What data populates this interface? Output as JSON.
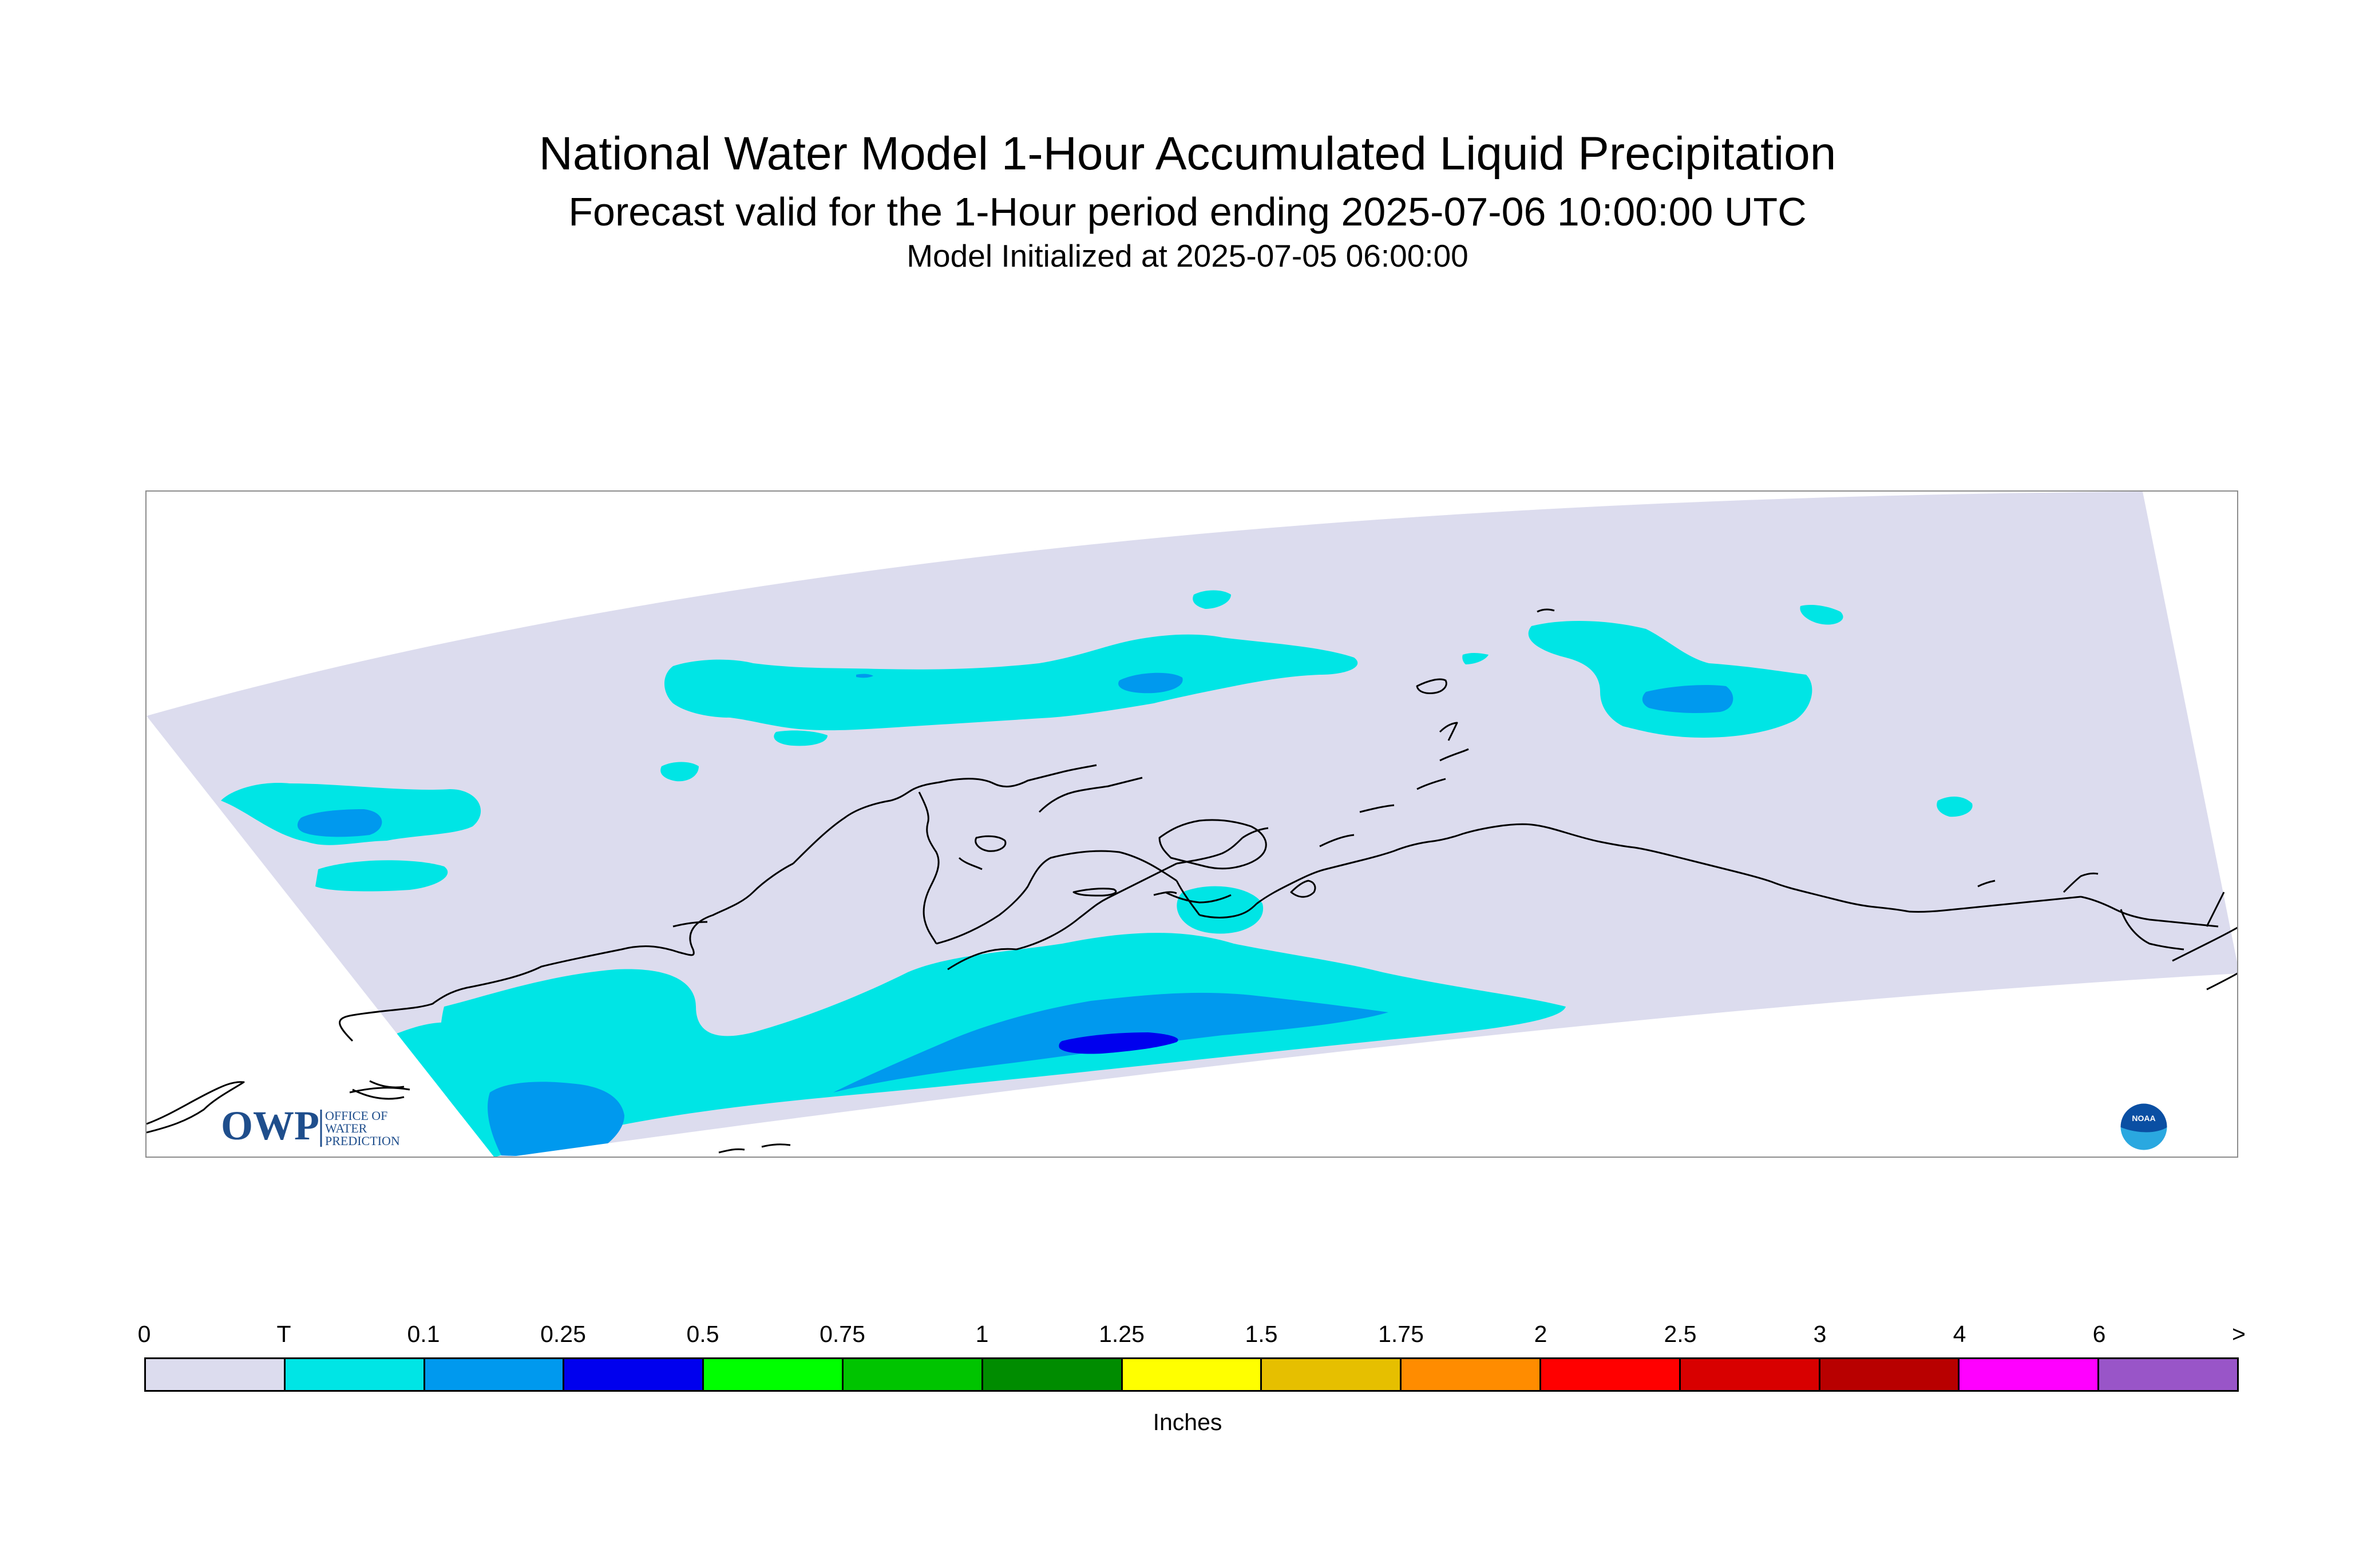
{
  "titles": {
    "main": "National Water Model 1-Hour Accumulated Liquid Precipitation",
    "sub": "Forecast valid for the 1-Hour period ending 2025-07-06 10:00:00 UTC",
    "init": "Model Initialized at 2025-07-05 06:00:00"
  },
  "logos": {
    "owp": {
      "mark": "OWP",
      "text": [
        "OFFICE OF",
        "WATER",
        "PREDICTION"
      ],
      "color": "#1f4e8c"
    },
    "noaa": {
      "mark": "NOAA",
      "colors": [
        "#0a4fa3",
        "#2aa8e0"
      ]
    }
  },
  "map": {
    "domain_fill": "#dcdcee",
    "outline_color": "#000000",
    "legend_fill_levels": {
      "trace": "#00e5e5",
      "light": "#0099ee",
      "moderate": "#0000ee"
    }
  },
  "legend": {
    "tick_labels": [
      "0",
      "T",
      "0.1",
      "0.25",
      "0.5",
      "0.75",
      "1",
      "1.25",
      "1.5",
      "1.75",
      "2",
      "2.5",
      "3",
      "4",
      "6",
      ">"
    ],
    "colors": [
      "#dcdcee",
      "#00e5e5",
      "#0099ee",
      "#0000ee",
      "#00ff00",
      "#00c400",
      "#008c00",
      "#ffff00",
      "#e6bf00",
      "#ff8c00",
      "#ff0000",
      "#d80000",
      "#b80000",
      "#ff00ff",
      "#9955c8"
    ],
    "units": "Inches"
  }
}
